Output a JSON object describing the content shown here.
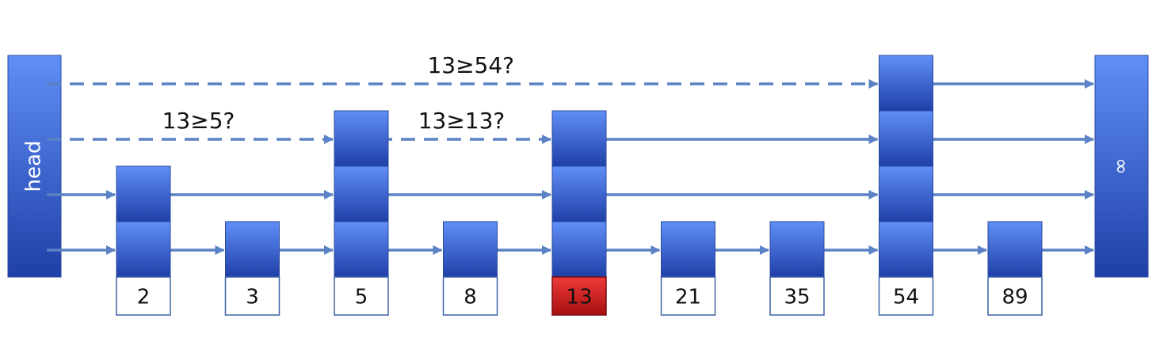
{
  "diagram": {
    "head_label": "head",
    "tail_label": "∞",
    "colors": {
      "node_top": "#5f8ff7",
      "node_bottom": "#1f3fa8",
      "node_border": "#2b4a9c",
      "link": "#5a82c4",
      "key_border": "#3d62a8",
      "highlight_top": "#ef3b3b",
      "highlight_bottom": "#a80f0f",
      "text": "#111111"
    },
    "nodes": [
      {
        "key": "2",
        "height": 2,
        "highlight": false
      },
      {
        "key": "3",
        "height": 1,
        "highlight": false
      },
      {
        "key": "5",
        "height": 3,
        "highlight": false
      },
      {
        "key": "8",
        "height": 1,
        "highlight": false
      },
      {
        "key": "13",
        "height": 3,
        "highlight": true
      },
      {
        "key": "21",
        "height": 1,
        "highlight": false
      },
      {
        "key": "35",
        "height": 1,
        "highlight": false
      },
      {
        "key": "54",
        "height": 4,
        "highlight": false
      },
      {
        "key": "89",
        "height": 1,
        "highlight": false
      }
    ],
    "search_queries": [
      {
        "text": "13≥54?",
        "level": 4,
        "from": "head",
        "to": "54"
      },
      {
        "text": "13≥5?",
        "level": 3,
        "from": "head",
        "to": "5"
      },
      {
        "text": "13≥13?",
        "level": 3,
        "from": "5",
        "to": "13"
      }
    ]
  }
}
